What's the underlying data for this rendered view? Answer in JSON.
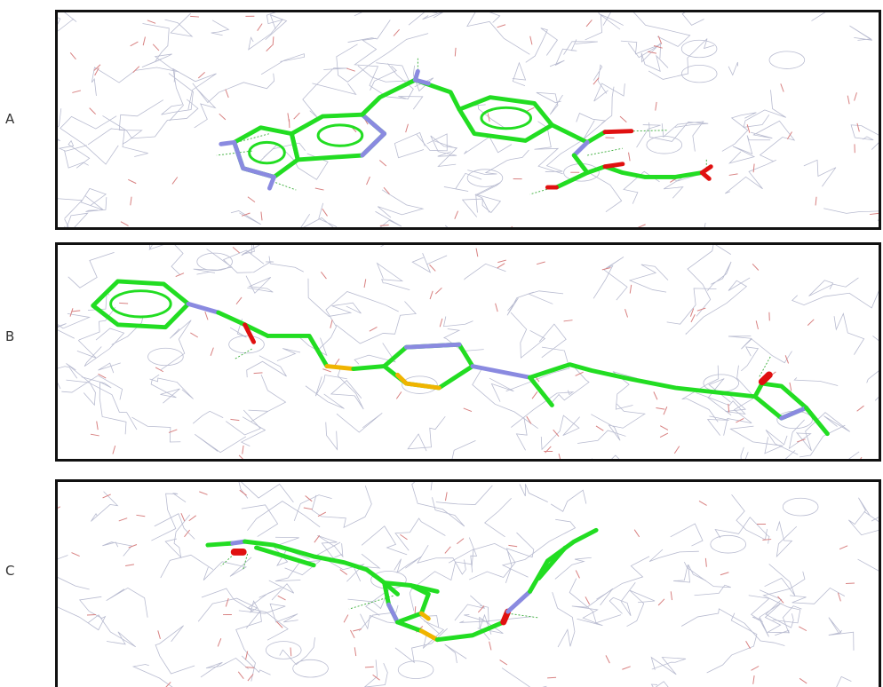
{
  "colors": {
    "carbon": "#22dd22",
    "nitrogen": "#8a8ae0",
    "oxygen": "#e01010",
    "sulfur": "#f0b400",
    "protein_wire": "#b8bbd0",
    "protein_oxygen": "#d88080",
    "hbond": "#33aa33",
    "frame": "#111111"
  },
  "panels": [
    {
      "label": "A",
      "residue_labels": [
        "",
        "",
        "",
        "",
        "",
        "",
        "",
        ""
      ],
      "distance_labels": [
        "",
        "",
        "",
        "",
        "",
        "",
        "",
        ""
      ]
    },
    {
      "label": "B",
      "residue_labels": [
        "",
        ""
      ],
      "distance_labels": [
        "",
        ""
      ]
    },
    {
      "label": "C",
      "residue_labels": [
        "",
        "",
        "",
        ""
      ],
      "distance_labels": [
        "",
        "",
        "",
        ""
      ]
    }
  ]
}
